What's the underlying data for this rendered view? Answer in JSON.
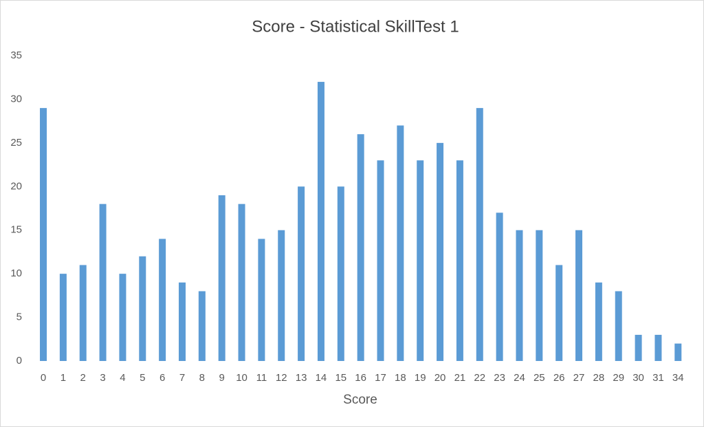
{
  "chart_data": {
    "type": "bar",
    "title": "Score - Statistical SkillTest 1",
    "x_label": "Score",
    "categories": [
      "0",
      "1",
      "2",
      "3",
      "4",
      "5",
      "6",
      "7",
      "8",
      "9",
      "10",
      "11",
      "12",
      "13",
      "14",
      "15",
      "16",
      "17",
      "18",
      "19",
      "20",
      "21",
      "22",
      "23",
      "24",
      "25",
      "26",
      "27",
      "28",
      "29",
      "30",
      "31",
      "34"
    ],
    "values": [
      29,
      10,
      11,
      18,
      10,
      12,
      14,
      9,
      8,
      19,
      18,
      14,
      15,
      20,
      32,
      20,
      26,
      23,
      27,
      23,
      25,
      23,
      29,
      17,
      15,
      15,
      11,
      15,
      9,
      8,
      3,
      3,
      2
    ],
    "color": "#5b9bd5",
    "ylim": [
      0,
      35
    ],
    "yticks": [
      0,
      5,
      10,
      15,
      20,
      25,
      30,
      35
    ],
    "grid": false
  }
}
